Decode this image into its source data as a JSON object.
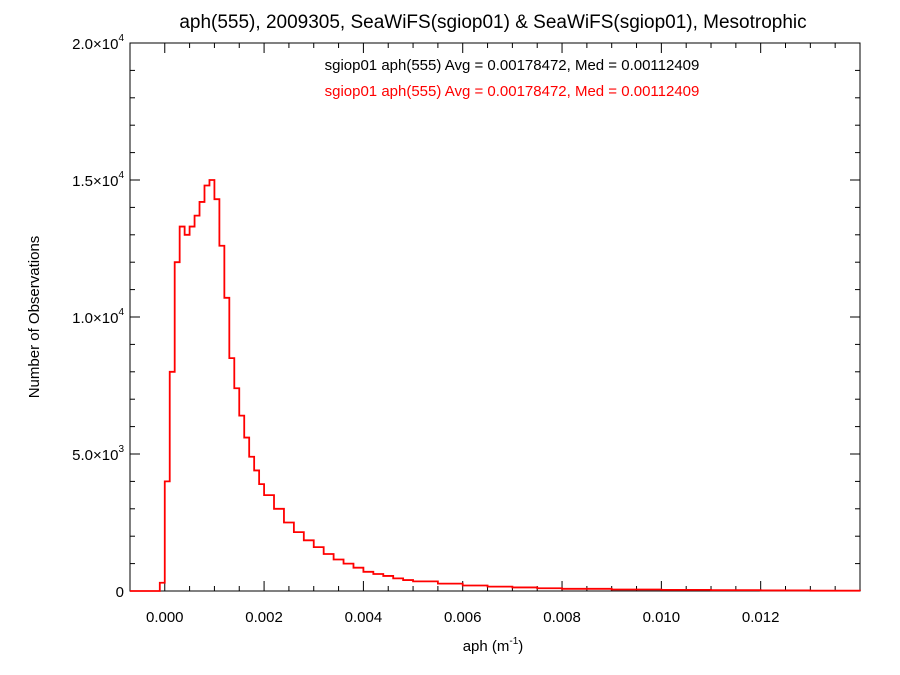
{
  "chart_data": {
    "type": "line",
    "title": "aph(555), 2009305, SeaWiFS(sgiop01) & SeaWiFS(sgiop01), Mesotrophic",
    "xlabel": "aph (m",
    "xlabel_sup": "-1",
    "xlabel_close": ")",
    "ylabel": "Number of Observations",
    "xlim": [
      -0.0007,
      0.014
    ],
    "ylim": [
      0,
      20000
    ],
    "grid": false,
    "step": true,
    "x_ticks": [
      {
        "value": 0.0,
        "label": "0.000"
      },
      {
        "value": 0.002,
        "label": "0.002"
      },
      {
        "value": 0.004,
        "label": "0.004"
      },
      {
        "value": 0.006,
        "label": "0.006"
      },
      {
        "value": 0.008,
        "label": "0.008"
      },
      {
        "value": 0.01,
        "label": "0.010"
      },
      {
        "value": 0.012,
        "label": "0.012"
      }
    ],
    "y_ticks": [
      {
        "value": 0,
        "mant": "0",
        "exp": ""
      },
      {
        "value": 5000,
        "mant": "5.0×10",
        "exp": "3"
      },
      {
        "value": 10000,
        "mant": "1.0×10",
        "exp": "4"
      },
      {
        "value": 15000,
        "mant": "1.5×10",
        "exp": "4"
      },
      {
        "value": 20000,
        "mant": "2.0×10",
        "exp": "4"
      }
    ],
    "legend": [
      {
        "text": "sgiop01 aph(555) Avg = 0.00178472, Med = 0.00112409",
        "color": "#000000"
      },
      {
        "text": "sgiop01 aph(555) Avg = 0.00178472, Med = 0.00112409",
        "color": "#ff0000"
      }
    ],
    "series": [
      {
        "color": "#ff0000",
        "x": [
          -0.0007,
          -0.0002,
          -0.0001,
          0.0,
          0.0001,
          0.0002,
          0.0003,
          0.0004,
          0.0005,
          0.0006,
          0.0007,
          0.0008,
          0.0009,
          0.001,
          0.0011,
          0.0012,
          0.0013,
          0.0014,
          0.0015,
          0.0016,
          0.0017,
          0.0018,
          0.0019,
          0.002,
          0.0022,
          0.0024,
          0.0026,
          0.0028,
          0.003,
          0.0032,
          0.0034,
          0.0036,
          0.0038,
          0.004,
          0.0042,
          0.0044,
          0.0046,
          0.0048,
          0.005,
          0.0055,
          0.006,
          0.0065,
          0.007,
          0.0075,
          0.008,
          0.009,
          0.01,
          0.011,
          0.012,
          0.013,
          0.014
        ],
        "y": [
          0,
          0,
          300,
          4000,
          8000,
          12000,
          13300,
          13000,
          13300,
          13700,
          14200,
          14800,
          15000,
          14300,
          12600,
          10700,
          8500,
          7400,
          6400,
          5600,
          4900,
          4400,
          3900,
          3500,
          3000,
          2500,
          2150,
          1850,
          1600,
          1350,
          1150,
          1000,
          850,
          700,
          620,
          550,
          460,
          400,
          350,
          270,
          200,
          160,
          130,
          100,
          80,
          55,
          40,
          30,
          20,
          12,
          8
        ]
      }
    ]
  }
}
